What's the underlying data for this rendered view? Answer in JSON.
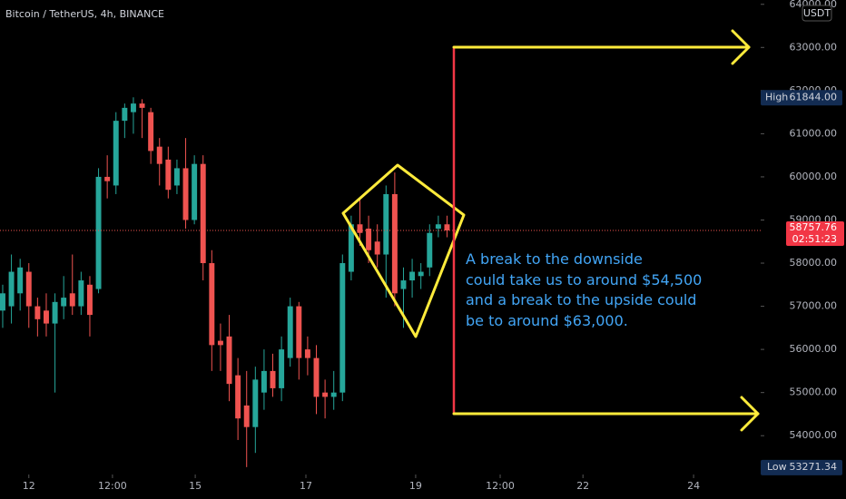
{
  "chart_data": {
    "type": "candlestick",
    "title": "Bitcoin / TetherUS, 4h, BINANCE",
    "currency": "USDT",
    "annotation": [
      "A break to the downside",
      "could take us to around $54,500",
      "and a break to the upside could",
      "be to around $63,000."
    ],
    "up_color": "#26a69a",
    "down_color": "#ef5350",
    "xlim": [
      -0.31,
      87
    ],
    "xticks": [
      {
        "value": 3.0,
        "label": "12"
      },
      {
        "value": 12.6,
        "label": "12:00"
      },
      {
        "value": 22.1,
        "label": "15"
      },
      {
        "value": 34.8,
        "label": "17"
      },
      {
        "value": 47.4,
        "label": "19"
      },
      {
        "value": 57.1,
        "label": "12:00"
      },
      {
        "value": 66.6,
        "label": "22"
      },
      {
        "value": 79.3,
        "label": "24"
      }
    ],
    "ylim": [
      53100,
      64100
    ],
    "yticks": [
      {
        "value": 54000,
        "label": "54000.00"
      },
      {
        "value": 55000,
        "label": "55000.00"
      },
      {
        "value": 56000,
        "label": "56000.00"
      },
      {
        "value": 57000,
        "label": "57000.00"
      },
      {
        "value": 58000,
        "label": "58000.00"
      },
      {
        "value": 59000,
        "label": "59000.00"
      },
      {
        "value": 60000,
        "label": "60000.00"
      },
      {
        "value": 61000,
        "label": "61000.00"
      },
      {
        "value": 62000,
        "label": "62000.00"
      },
      {
        "value": 63000,
        "label": "63000.00"
      },
      {
        "value": 64000,
        "label": "64000.00"
      }
    ],
    "open": [
      56900,
      57000,
      57300,
      57800,
      57000,
      56900,
      56600,
      57000,
      57300,
      57000,
      57500,
      57400,
      60000,
      59800,
      61300,
      61500,
      61700,
      61500,
      60700,
      60400,
      59800,
      60200,
      59000,
      60300,
      58000,
      56200,
      56300,
      55400,
      54700,
      54200,
      55000,
      55500,
      55100,
      55800,
      57000,
      56000,
      55800,
      55000,
      54900,
      55000,
      57800,
      58900,
      58800,
      58500,
      58200,
      59600,
      57400,
      57600,
      57700,
      57900,
      58800,
      58900
    ],
    "high": [
      57500,
      58200,
      58100,
      58000,
      57200,
      57300,
      57300,
      57700,
      58200,
      57800,
      57700,
      60200,
      60500,
      61500,
      61700,
      61844,
      61800,
      61600,
      60900,
      60700,
      60400,
      60900,
      60500,
      60500,
      58300,
      56600,
      56800,
      55800,
      55500,
      55600,
      56000,
      55900,
      56300,
      57200,
      57100,
      56300,
      56100,
      55300,
      55500,
      58200,
      59100,
      59500,
      59100,
      58900,
      59800,
      60100,
      57900,
      58100,
      58000,
      58900,
      59100,
      59100
    ],
    "low": [
      56500,
      56600,
      56900,
      56500,
      56300,
      56300,
      55000,
      56700,
      56800,
      56800,
      56300,
      57300,
      59500,
      59600,
      60900,
      61000,
      60900,
      60300,
      59800,
      59500,
      59600,
      58800,
      58900,
      57600,
      55500,
      55500,
      54800,
      53900,
      53271.34,
      53600,
      54600,
      54900,
      54800,
      55600,
      55300,
      55400,
      54500,
      54400,
      54600,
      54800,
      57600,
      58400,
      58000,
      57900,
      57200,
      57000,
      56500,
      57200,
      57400,
      57700,
      58600,
      58600
    ],
    "close": [
      57300,
      57800,
      57900,
      57000,
      56700,
      56600,
      57100,
      57200,
      57000,
      57600,
      56800,
      60000,
      59900,
      61300,
      61600,
      61700,
      61600,
      60600,
      60300,
      59700,
      60200,
      59000,
      60300,
      58000,
      56100,
      56100,
      55200,
      54400,
      54200,
      55300,
      55500,
      55100,
      56000,
      57000,
      55800,
      55800,
      54900,
      54900,
      55000,
      58000,
      58900,
      58700,
      58300,
      58200,
      59600,
      57300,
      57600,
      57800,
      57800,
      58700,
      58900,
      58757.76
    ],
    "high_marker": {
      "name": "High",
      "value": 61844,
      "value_label": "61844.00"
    },
    "low_marker": {
      "name": "Low",
      "value": 53271.34
    },
    "last_price": {
      "value": 58757.76,
      "countdown": "02:51:23"
    }
  }
}
